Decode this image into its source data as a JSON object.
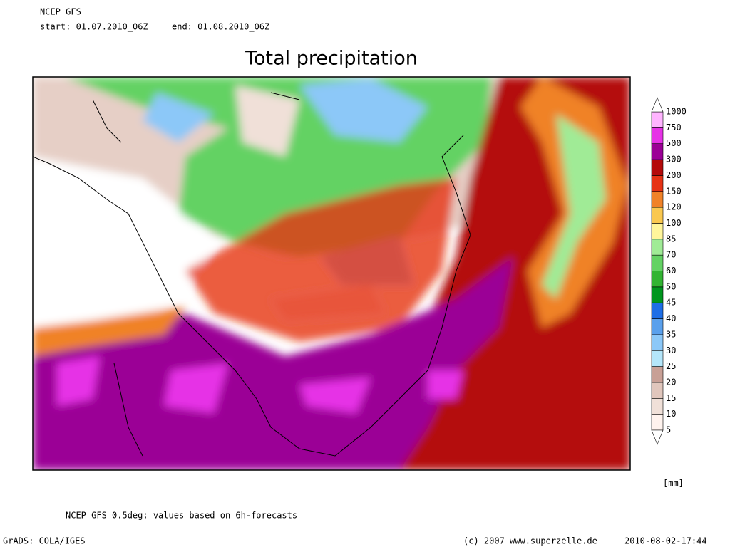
{
  "header": {
    "model": "NCEP GFS",
    "start": "start: 01.07.2010_06Z",
    "end": "end: 01.08.2010_06Z"
  },
  "title": "Total precipitation",
  "legend": {
    "levels": [
      5,
      10,
      15,
      20,
      25,
      30,
      35,
      40,
      45,
      50,
      60,
      70,
      85,
      100,
      120,
      150,
      200,
      300,
      500,
      750,
      1000
    ],
    "colors": [
      "#fff3ee",
      "#f0e0d8",
      "#e0c6bc",
      "#c8a096",
      "#b4e6fa",
      "#8cc8f8",
      "#5aa0ec",
      "#1e6ee6",
      "#00961e",
      "#32b432",
      "#64d264",
      "#a0eb96",
      "#fff59b",
      "#fac850",
      "#f08228",
      "#e63214",
      "#b40a0a",
      "#9b0096",
      "#e632e6",
      "#ffb4ff"
    ],
    "unit": "[mm]"
  },
  "footer": {
    "note": "NCEP GFS 0.5deg; values based on 6h-forecasts",
    "software": "GrADS: COLA/IGES",
    "copyright": "(c) 2007 www.superzelle.de",
    "timestamp": "2010-08-02-17:44"
  }
}
